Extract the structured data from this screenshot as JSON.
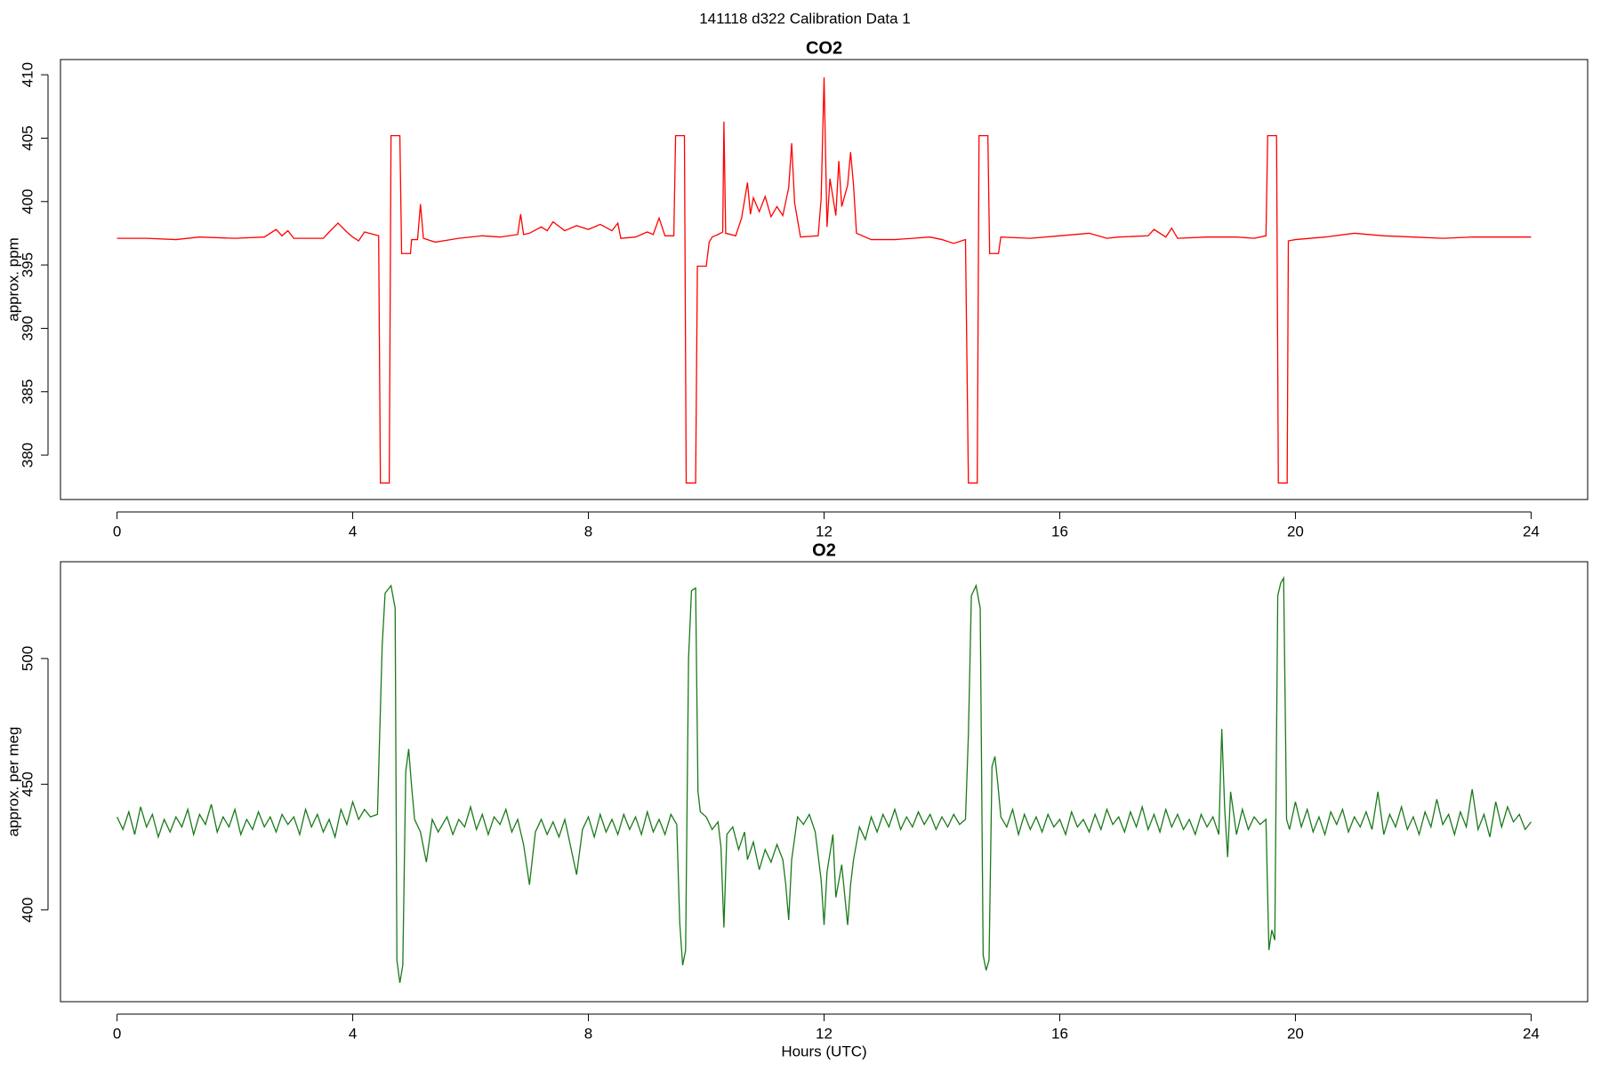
{
  "title": "141118   d322   Calibration Data 1",
  "chart_data": [
    {
      "type": "line",
      "title": "CO2",
      "ylabel": "approx. ppm",
      "color": "#ff0000",
      "xlim": [
        -0.96,
        24.96
      ],
      "xticks": [
        0,
        4,
        8,
        12,
        16,
        20,
        24
      ],
      "ylim": [
        376.5,
        411.2
      ],
      "yticks": [
        380,
        385,
        390,
        395,
        400,
        405,
        410
      ],
      "x": [
        0,
        0.5,
        1,
        1.4,
        2,
        2.5,
        2.7,
        2.8,
        2.9,
        3.0,
        3.5,
        3.6,
        3.75,
        3.9,
        4.0,
        4.1,
        4.2,
        4.44,
        4.47,
        4.62,
        4.65,
        4.8,
        4.83,
        4.98,
        5.0,
        5.1,
        5.15,
        5.2,
        5.4,
        5.8,
        6.2,
        6.5,
        6.8,
        6.85,
        6.9,
        7.0,
        7.2,
        7.3,
        7.4,
        7.6,
        7.8,
        8.0,
        8.2,
        8.4,
        8.5,
        8.55,
        8.8,
        9.0,
        9.1,
        9.2,
        9.3,
        9.45,
        9.48,
        9.63,
        9.66,
        9.82,
        9.85,
        10.0,
        10.05,
        10.1,
        10.2,
        10.28,
        10.3,
        10.33,
        10.5,
        10.6,
        10.7,
        10.75,
        10.8,
        10.9,
        11.0,
        11.1,
        11.2,
        11.3,
        11.4,
        11.45,
        11.5,
        11.6,
        11.9,
        11.95,
        12.0,
        12.05,
        12.1,
        12.2,
        12.25,
        12.3,
        12.4,
        12.45,
        12.5,
        12.55,
        12.8,
        13.2,
        13.5,
        13.8,
        14.0,
        14.2,
        14.4,
        14.45,
        14.6,
        14.63,
        14.78,
        14.81,
        14.96,
        15.0,
        15.5,
        16.0,
        16.5,
        16.8,
        17.0,
        17.5,
        17.6,
        17.8,
        17.9,
        18.0,
        18.5,
        19.0,
        19.3,
        19.5,
        19.53,
        19.68,
        19.71,
        19.86,
        19.88,
        20.0,
        20.5,
        21.0,
        21.5,
        22.0,
        22.5,
        23.0,
        23.5,
        24.0
      ],
      "values": [
        397.1,
        397.1,
        397.0,
        397.2,
        397.1,
        397.2,
        397.8,
        397.3,
        397.7,
        397.1,
        397.1,
        397.6,
        398.3,
        397.6,
        397.2,
        396.9,
        397.6,
        397.3,
        377.8,
        377.8,
        405.2,
        405.2,
        395.9,
        395.9,
        397.0,
        397.0,
        399.8,
        397.1,
        396.8,
        397.1,
        397.3,
        397.2,
        397.4,
        399.0,
        397.4,
        397.5,
        398.0,
        397.7,
        398.4,
        397.7,
        398.1,
        397.8,
        398.2,
        397.7,
        398.3,
        397.1,
        397.2,
        397.6,
        397.4,
        398.7,
        397.3,
        397.3,
        405.2,
        405.2,
        377.8,
        377.8,
        394.9,
        394.9,
        396.8,
        397.2,
        397.4,
        397.6,
        406.3,
        397.5,
        397.3,
        398.7,
        401.5,
        399.0,
        400.3,
        399.2,
        400.4,
        398.8,
        399.6,
        398.9,
        401.1,
        404.6,
        399.9,
        397.2,
        397.3,
        400.2,
        409.8,
        398.0,
        401.8,
        398.9,
        403.2,
        399.6,
        401.3,
        403.9,
        401.3,
        397.5,
        397.0,
        397.0,
        397.1,
        397.2,
        397.0,
        396.7,
        397.0,
        377.8,
        377.8,
        405.2,
        405.2,
        395.9,
        395.9,
        397.2,
        397.1,
        397.3,
        397.5,
        397.1,
        397.2,
        397.3,
        397.8,
        397.2,
        397.9,
        397.1,
        397.2,
        397.2,
        397.1,
        397.3,
        405.2,
        405.2,
        377.8,
        377.8,
        396.9,
        397.0,
        397.2,
        397.5,
        397.3,
        397.2,
        397.1,
        397.2,
        397.2,
        397.2
      ]
    },
    {
      "type": "line",
      "title": "O2",
      "ylabel": "approx. per meg",
      "xlabel": "Hours (UTC)",
      "color": "#1a7a1a",
      "xlim": [
        -0.96,
        24.96
      ],
      "xticks": [
        0,
        4,
        8,
        12,
        16,
        20,
        24
      ],
      "ylim": [
        363.5,
        538.5
      ],
      "yticks": [
        400,
        450,
        500
      ],
      "x": [
        0,
        0.1,
        0.2,
        0.3,
        0.4,
        0.5,
        0.6,
        0.7,
        0.8,
        0.9,
        1.0,
        1.1,
        1.2,
        1.3,
        1.4,
        1.5,
        1.6,
        1.7,
        1.8,
        1.9,
        2.0,
        2.1,
        2.2,
        2.3,
        2.4,
        2.5,
        2.6,
        2.7,
        2.8,
        2.9,
        3.0,
        3.1,
        3.2,
        3.3,
        3.4,
        3.5,
        3.6,
        3.7,
        3.8,
        3.9,
        4.0,
        4.1,
        4.2,
        4.3,
        4.42,
        4.5,
        4.55,
        4.65,
        4.72,
        4.75,
        4.8,
        4.85,
        4.9,
        4.95,
        5.0,
        5.05,
        5.15,
        5.25,
        5.35,
        5.45,
        5.6,
        5.7,
        5.8,
        5.9,
        6.0,
        6.1,
        6.2,
        6.3,
        6.4,
        6.5,
        6.6,
        6.7,
        6.8,
        6.9,
        7.0,
        7.1,
        7.2,
        7.3,
        7.4,
        7.5,
        7.6,
        7.7,
        7.8,
        7.9,
        8.0,
        8.1,
        8.2,
        8.3,
        8.4,
        8.5,
        8.6,
        8.7,
        8.8,
        8.9,
        9.0,
        9.1,
        9.2,
        9.3,
        9.4,
        9.5,
        9.55,
        9.6,
        9.65,
        9.7,
        9.75,
        9.82,
        9.86,
        9.9,
        10.0,
        10.1,
        10.2,
        10.25,
        10.3,
        10.35,
        10.45,
        10.55,
        10.65,
        10.7,
        10.8,
        10.9,
        11.0,
        11.1,
        11.2,
        11.3,
        11.35,
        11.4,
        11.45,
        11.55,
        11.65,
        11.75,
        11.85,
        11.95,
        12.0,
        12.05,
        12.15,
        12.2,
        12.3,
        12.4,
        12.45,
        12.5,
        12.6,
        12.7,
        12.8,
        12.9,
        13.0,
        13.1,
        13.2,
        13.3,
        13.4,
        13.5,
        13.6,
        13.7,
        13.8,
        13.9,
        14.0,
        14.1,
        14.2,
        14.3,
        14.4,
        14.45,
        14.5,
        14.58,
        14.65,
        14.7,
        14.75,
        14.8,
        14.85,
        14.9,
        14.95,
        15.0,
        15.1,
        15.2,
        15.3,
        15.4,
        15.5,
        15.6,
        15.7,
        15.8,
        15.9,
        16.0,
        16.1,
        16.2,
        16.3,
        16.4,
        16.5,
        16.6,
        16.7,
        16.8,
        16.9,
        17.0,
        17.1,
        17.2,
        17.3,
        17.4,
        17.5,
        17.6,
        17.7,
        17.8,
        17.9,
        18.0,
        18.1,
        18.2,
        18.3,
        18.4,
        18.5,
        18.6,
        18.7,
        18.75,
        18.8,
        18.85,
        18.9,
        19.0,
        19.1,
        19.2,
        19.3,
        19.4,
        19.5,
        19.55,
        19.6,
        19.65,
        19.7,
        19.75,
        19.8,
        19.85,
        19.9,
        20.0,
        20.1,
        20.2,
        20.3,
        20.4,
        20.5,
        20.6,
        20.7,
        20.8,
        20.9,
        21.0,
        21.1,
        21.2,
        21.3,
        21.4,
        21.5,
        21.6,
        21.7,
        21.8,
        21.9,
        22.0,
        22.1,
        22.2,
        22.3,
        22.4,
        22.5,
        22.6,
        22.7,
        22.8,
        22.9,
        23.0,
        23.1,
        23.2,
        23.3,
        23.4,
        23.5,
        23.6,
        23.7,
        23.8,
        23.9,
        24.0
      ],
      "values": [
        437,
        432,
        439,
        430,
        441,
        433,
        438,
        429,
        436,
        431,
        437,
        433,
        440,
        430,
        438,
        434,
        442,
        431,
        437,
        433,
        440,
        430,
        436,
        432,
        439,
        433,
        437,
        431,
        438,
        434,
        437,
        430,
        440,
        433,
        438,
        431,
        436,
        429,
        440,
        434,
        443,
        436,
        440,
        437,
        438,
        505,
        526,
        529,
        520,
        380,
        371,
        378,
        455,
        464,
        449,
        436,
        431,
        419,
        436,
        431,
        437,
        430,
        436,
        433,
        441,
        432,
        438,
        430,
        437,
        434,
        440,
        431,
        436,
        426,
        410,
        431,
        436,
        430,
        435,
        429,
        436,
        425,
        414,
        432,
        437,
        429,
        438,
        431,
        436,
        430,
        438,
        432,
        437,
        430,
        439,
        431,
        436,
        430,
        438,
        434,
        395,
        378,
        384,
        500,
        527,
        528,
        447,
        439,
        437,
        432,
        435,
        425,
        393,
        430,
        433,
        424,
        431,
        420,
        427,
        416,
        424,
        419,
        426,
        420,
        410,
        396,
        420,
        437,
        434,
        438,
        431,
        412,
        394,
        415,
        430,
        405,
        418,
        394,
        410,
        420,
        433,
        428,
        437,
        431,
        438,
        433,
        440,
        432,
        437,
        433,
        439,
        434,
        438,
        432,
        437,
        433,
        438,
        434,
        436,
        470,
        525,
        529,
        520,
        382,
        376,
        380,
        457,
        461,
        450,
        437,
        433,
        440,
        430,
        438,
        432,
        437,
        431,
        438,
        433,
        436,
        430,
        439,
        433,
        436,
        431,
        438,
        432,
        440,
        434,
        437,
        431,
        439,
        433,
        441,
        432,
        438,
        431,
        440,
        433,
        438,
        432,
        436,
        430,
        438,
        433,
        437,
        430,
        472,
        440,
        421,
        447,
        430,
        440,
        432,
        437,
        434,
        436,
        384,
        392,
        388,
        525,
        530,
        532,
        436,
        432,
        443,
        433,
        440,
        431,
        437,
        430,
        439,
        434,
        440,
        431,
        437,
        433,
        439,
        432,
        447,
        430,
        438,
        433,
        441,
        432,
        437,
        430,
        439,
        433,
        444,
        434,
        438,
        430,
        439,
        433,
        448,
        432,
        438,
        429,
        443,
        433,
        441,
        435,
        438,
        432,
        435
      ]
    }
  ]
}
